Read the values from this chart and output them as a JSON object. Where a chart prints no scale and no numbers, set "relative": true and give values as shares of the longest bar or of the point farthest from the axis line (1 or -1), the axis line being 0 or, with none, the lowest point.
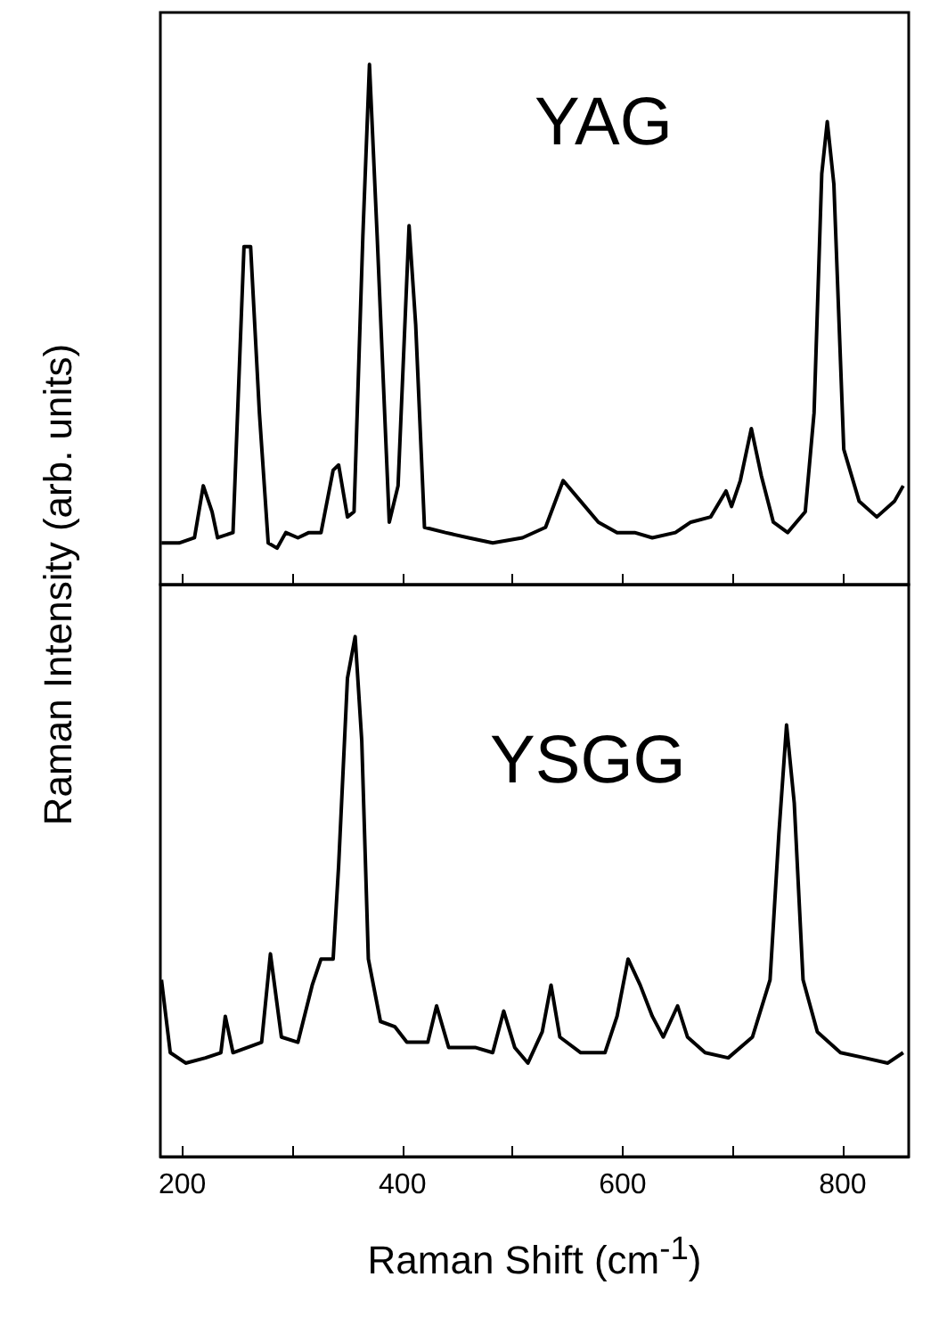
{
  "chart_data": [
    {
      "type": "line",
      "ylabel": "Raman Intensity (arb. units)",
      "annotations": [
        "YAG"
      ],
      "relative": true,
      "xlim": [
        180,
        860
      ],
      "xticks": [
        200,
        {
          "value": 300,
          "label": null
        },
        400,
        {
          "value": 500,
          "label": null
        },
        600,
        {
          "value": 700,
          "label": null
        },
        800
      ],
      "tick_labels": false,
      "grid": false,
      "marker": "none",
      "line_style": "solid",
      "series": [
        {
          "color": "#000000",
          "x": [
            181,
            197,
            211,
            219,
            227,
            232,
            246,
            256,
            262,
            270,
            278,
            286,
            294,
            305,
            315,
            326,
            337,
            342,
            350,
            356,
            364,
            370,
            377,
            388,
            396,
            406,
            412,
            420,
            439,
            460,
            482,
            509,
            530,
            546,
            562,
            578,
            595,
            611,
            627,
            648,
            662,
            680,
            694,
            699,
            707,
            717,
            726,
            737,
            750,
            766,
            774,
            781,
            786,
            792,
            801,
            815,
            831,
            847,
            855
          ],
          "values": [
            0.08,
            0.08,
            0.09,
            0.19,
            0.14,
            0.09,
            0.1,
            0.65,
            0.65,
            0.33,
            0.08,
            0.07,
            0.1,
            0.09,
            0.1,
            0.1,
            0.22,
            0.23,
            0.13,
            0.14,
            0.67,
            1.0,
            0.67,
            0.12,
            0.19,
            0.69,
            0.5,
            0.11,
            0.1,
            0.09,
            0.08,
            0.09,
            0.11,
            0.2,
            0.16,
            0.12,
            0.1,
            0.1,
            0.09,
            0.1,
            0.12,
            0.13,
            0.18,
            0.15,
            0.2,
            0.3,
            0.21,
            0.12,
            0.1,
            0.14,
            0.33,
            0.79,
            0.89,
            0.77,
            0.26,
            0.16,
            0.13,
            0.16,
            0.19
          ]
        }
      ]
    },
    {
      "type": "line",
      "xlabel": "Raman Shift (cm$^{-1}$)",
      "annotations": [
        "YSGG"
      ],
      "relative": true,
      "xlim": [
        180,
        860
      ],
      "xticks": [
        200,
        {
          "value": 300,
          "label": null
        },
        400,
        {
          "value": 500,
          "label": null
        },
        600,
        {
          "value": 700,
          "label": null
        },
        800
      ],
      "tick_labels": "x",
      "grid": false,
      "marker": "none",
      "line_style": "solid",
      "series": [
        {
          "color": "#000000",
          "x": [
            181,
            189,
            203,
            221,
            235,
            239,
            246,
            272,
            280,
            290,
            305,
            318,
            326,
            337,
            342,
            350,
            357,
            363,
            369,
            380,
            393,
            404,
            423,
            431,
            442,
            466,
            482,
            492,
            502,
            514,
            527,
            535,
            543,
            562,
            584,
            595,
            605,
            616,
            627,
            637,
            650,
            659,
            675,
            696,
            718,
            734,
            742,
            749,
            756,
            764,
            777,
            798,
            820,
            841,
            855
          ],
          "values": [
            0.34,
            0.2,
            0.18,
            0.19,
            0.2,
            0.27,
            0.2,
            0.22,
            0.39,
            0.23,
            0.22,
            0.33,
            0.38,
            0.38,
            0.56,
            0.92,
            1.0,
            0.8,
            0.38,
            0.26,
            0.25,
            0.22,
            0.22,
            0.29,
            0.21,
            0.21,
            0.2,
            0.28,
            0.21,
            0.18,
            0.24,
            0.33,
            0.23,
            0.2,
            0.2,
            0.27,
            0.38,
            0.33,
            0.27,
            0.23,
            0.29,
            0.23,
            0.2,
            0.19,
            0.23,
            0.34,
            0.62,
            0.83,
            0.68,
            0.34,
            0.24,
            0.2,
            0.19,
            0.18,
            0.2
          ]
        }
      ]
    }
  ]
}
